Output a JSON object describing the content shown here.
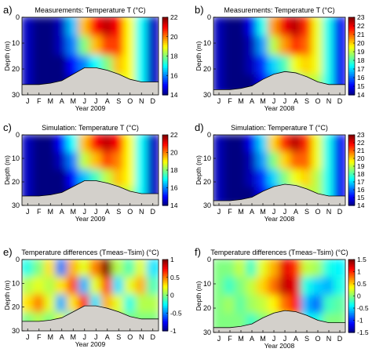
{
  "chart_data": [
    {
      "type": "heatmap",
      "panel_label": "a)",
      "title": "Measurements: Temperature T (°C)",
      "xlabel": "Year 2009",
      "ylabel": "Depth (m)",
      "x_ticks": [
        "J",
        "F",
        "M",
        "A",
        "M",
        "J",
        "J",
        "A",
        "S",
        "O",
        "N",
        "D"
      ],
      "y_ticks": [
        0,
        10,
        20,
        30
      ],
      "ylim": [
        0,
        30
      ],
      "colorbar": {
        "min": 14,
        "max": 22,
        "ticks": [
          14,
          16,
          18,
          20,
          22
        ]
      },
      "bottom_depth_by_month": [
        26,
        26,
        25.5,
        24.5,
        22,
        19.5,
        19.5,
        20.5,
        22,
        24,
        25,
        25
      ],
      "contour_levels_by_month": [
        [
          14.5,
          14.5,
          14.5,
          14.5
        ],
        [
          14,
          14,
          14,
          14
        ],
        [
          14,
          14,
          14,
          14
        ],
        [
          14.5,
          14.5,
          14,
          14
        ],
        [
          16.5,
          16,
          15,
          14.5
        ],
        [
          19.5,
          18,
          16,
          15
        ],
        [
          21,
          19.5,
          17,
          16
        ],
        [
          21.5,
          20.5,
          18,
          17
        ],
        [
          21,
          20.5,
          19.5,
          18.5
        ],
        [
          19,
          19,
          19,
          19
        ],
        [
          17,
          17,
          17,
          17
        ],
        [
          14.5,
          14.5,
          14.5,
          14.5
        ]
      ]
    },
    {
      "type": "heatmap",
      "panel_label": "b)",
      "title": "Measurements: Temperature T (°C)",
      "xlabel": "Year 2008",
      "ylabel": "Depth (m)",
      "x_ticks": [
        "J",
        "F",
        "M",
        "A",
        "M",
        "J",
        "J",
        "A",
        "S",
        "O",
        "N",
        "D"
      ],
      "y_ticks": [
        0,
        10,
        20,
        30
      ],
      "ylim": [
        0,
        30
      ],
      "colorbar": {
        "min": 14,
        "max": 23,
        "ticks": [
          14,
          15,
          16,
          17,
          18,
          19,
          20,
          21,
          22,
          23
        ]
      },
      "bottom_depth_by_month": [
        28,
        28,
        27.5,
        26.5,
        24,
        22,
        21,
        21.5,
        23,
        25,
        26,
        26
      ],
      "contour_levels_by_month": [
        [
          14.5,
          14.5,
          14.5,
          14.5
        ],
        [
          14,
          14,
          14,
          14
        ],
        [
          14,
          14,
          14,
          14
        ],
        [
          15,
          14.5,
          14.5,
          14
        ],
        [
          17.5,
          16.5,
          15.5,
          15
        ],
        [
          20.5,
          19,
          17,
          16
        ],
        [
          22,
          20.5,
          18,
          17
        ],
        [
          22.5,
          21.5,
          19.5,
          18
        ],
        [
          21.5,
          21,
          20,
          19
        ],
        [
          19.5,
          19.5,
          19.5,
          19
        ],
        [
          17.5,
          17.5,
          17.5,
          17.5
        ],
        [
          15,
          15,
          15,
          15
        ]
      ]
    },
    {
      "type": "heatmap",
      "panel_label": "c)",
      "title": "Simulation: Temperature T (°C)",
      "xlabel": "Year 2009",
      "ylabel": "Depth (m)",
      "x_ticks": [
        "J",
        "F",
        "M",
        "A",
        "M",
        "J",
        "J",
        "A",
        "S",
        "O",
        "N",
        "D"
      ],
      "y_ticks": [
        0,
        10,
        20,
        30
      ],
      "ylim": [
        0,
        30
      ],
      "colorbar": {
        "min": 14,
        "max": 22,
        "ticks": [
          14,
          16,
          18,
          20,
          22
        ]
      },
      "bottom_depth_by_month": [
        26,
        26,
        25.5,
        24.5,
        22,
        19.5,
        19.5,
        20.5,
        22,
        24,
        25,
        25
      ],
      "contour_levels_by_month": [
        [
          14.5,
          14.5,
          14.5,
          14.5
        ],
        [
          14,
          14,
          14,
          14
        ],
        [
          14,
          14,
          14,
          14
        ],
        [
          15,
          14.5,
          14,
          14
        ],
        [
          17,
          16,
          15,
          14.5
        ],
        [
          19.5,
          18.5,
          16.5,
          15.5
        ],
        [
          21,
          19.5,
          17.5,
          16.5
        ],
        [
          21.5,
          20.5,
          18.5,
          17.5
        ],
        [
          21,
          20,
          19.5,
          18.5
        ],
        [
          19,
          19,
          19,
          18.5
        ],
        [
          17,
          17,
          17,
          17
        ],
        [
          14.5,
          14.5,
          14.5,
          14.5
        ]
      ]
    },
    {
      "type": "heatmap",
      "panel_label": "d)",
      "title": "Simulation: Temperature T (°C)",
      "xlabel": "Year 2008",
      "ylabel": "Depth (m)",
      "x_ticks": [
        "J",
        "F",
        "M",
        "A",
        "M",
        "J",
        "J",
        "A",
        "S",
        "O",
        "N",
        "D"
      ],
      "y_ticks": [
        0,
        10,
        20,
        30
      ],
      "ylim": [
        0,
        30
      ],
      "colorbar": {
        "min": 14,
        "max": 23,
        "ticks": [
          14,
          15,
          16,
          17,
          18,
          19,
          20,
          21,
          22,
          23
        ]
      },
      "bottom_depth_by_month": [
        28,
        28,
        27.5,
        26.5,
        24,
        22,
        21,
        21.5,
        23,
        25,
        26,
        26
      ],
      "contour_levels_by_month": [
        [
          14.5,
          14.5,
          14.5,
          14.5
        ],
        [
          14,
          14,
          14,
          14
        ],
        [
          14,
          14,
          14,
          14
        ],
        [
          15,
          14.5,
          14.5,
          14
        ],
        [
          17,
          16.5,
          15.5,
          15
        ],
        [
          20,
          18.5,
          17,
          16
        ],
        [
          21.5,
          20,
          18.5,
          17
        ],
        [
          22.5,
          21,
          19.5,
          18
        ],
        [
          21.5,
          21,
          20,
          19
        ],
        [
          19.5,
          19.5,
          19,
          19
        ],
        [
          17.5,
          17.5,
          17.5,
          17.5
        ],
        [
          15,
          15,
          15,
          15
        ]
      ]
    },
    {
      "type": "heatmap",
      "panel_label": "e)",
      "title": "Temperature differences (Tmeas−Tsim) (°C)",
      "xlabel": "Year 2009",
      "ylabel": "Depth (m)",
      "x_ticks": [
        "J",
        "F",
        "M",
        "A",
        "M",
        "J",
        "J",
        "A",
        "S",
        "O",
        "N",
        "D"
      ],
      "y_ticks": [
        0,
        10,
        20,
        30
      ],
      "ylim": [
        0,
        30
      ],
      "colorbar": {
        "min": -1,
        "max": 1,
        "ticks": [
          -1,
          -0.5,
          0,
          0.5,
          1
        ]
      },
      "bottom_depth_by_month": [
        26,
        26,
        25.5,
        24.5,
        22,
        19.5,
        19.5,
        20.5,
        22,
        24,
        25,
        25
      ],
      "contour_levels_by_month": [
        [
          -0.2,
          0.1,
          0.3,
          0
        ],
        [
          0,
          0.2,
          0.5,
          0.1
        ],
        [
          0.3,
          0.1,
          0.2,
          0
        ],
        [
          -0.5,
          0.3,
          -0.4,
          0.2
        ],
        [
          0.4,
          0.6,
          0.3,
          -0.3
        ],
        [
          0.2,
          -0.4,
          0.7,
          0.5
        ],
        [
          0.5,
          0.2,
          -0.3,
          0.4
        ],
        [
          1,
          0.6,
          0.4,
          -0.2
        ],
        [
          0.1,
          -0.3,
          0.2,
          0.1
        ],
        [
          -0.1,
          0.2,
          -0.2,
          0
        ],
        [
          0.2,
          0.4,
          0.1,
          0
        ],
        [
          -0.3,
          -0.1,
          0.1,
          0
        ]
      ]
    },
    {
      "type": "heatmap",
      "panel_label": "f)",
      "title": "Temperature differences (Tmeas−Tsim) (°C)",
      "xlabel": "Year 2008",
      "ylabel": "Depth (m)",
      "x_ticks": [
        "J",
        "F",
        "M",
        "A",
        "M",
        "J",
        "J",
        "A",
        "S",
        "O",
        "N",
        "D"
      ],
      "y_ticks": [
        0,
        10,
        20,
        30
      ],
      "ylim": [
        0,
        30
      ],
      "colorbar": {
        "min": -1.5,
        "max": 1.5,
        "ticks": [
          -1.5,
          -1,
          -0.5,
          0,
          0.5,
          1,
          1.5
        ]
      },
      "bottom_depth_by_month": [
        28,
        28,
        27.5,
        26.5,
        24,
        22,
        21,
        21.5,
        23,
        25,
        26,
        26
      ],
      "contour_levels_by_month": [
        [
          0,
          0,
          0,
          0
        ],
        [
          0,
          -0.2,
          0.1,
          0
        ],
        [
          0.2,
          0,
          -0.1,
          0
        ],
        [
          -0.2,
          0.2,
          0.1,
          -0.2
        ],
        [
          0.3,
          0.5,
          0.2,
          0
        ],
        [
          0.6,
          0.8,
          0.4,
          0.1
        ],
        [
          1.2,
          1.3,
          0.8,
          0.3
        ],
        [
          1,
          1.2,
          1.1,
          0.6
        ],
        [
          0.2,
          -0.3,
          -0.6,
          -0.4
        ],
        [
          0.1,
          -0.5,
          -0.8,
          -0.3
        ],
        [
          -0.3,
          -0.6,
          -0.2,
          0
        ],
        [
          -0.4,
          -0.3,
          -0.1,
          0
        ]
      ]
    }
  ],
  "colors": {
    "seafloor": "#d3d0cb",
    "seafloor_line": "#000000",
    "jet_dark_blue": "#00007f",
    "jet_blue": "#0000ff",
    "jet_cyan": "#00ffff",
    "jet_yellow": "#ffff00",
    "jet_red": "#ff0000",
    "jet_dark_red": "#7f0000"
  }
}
